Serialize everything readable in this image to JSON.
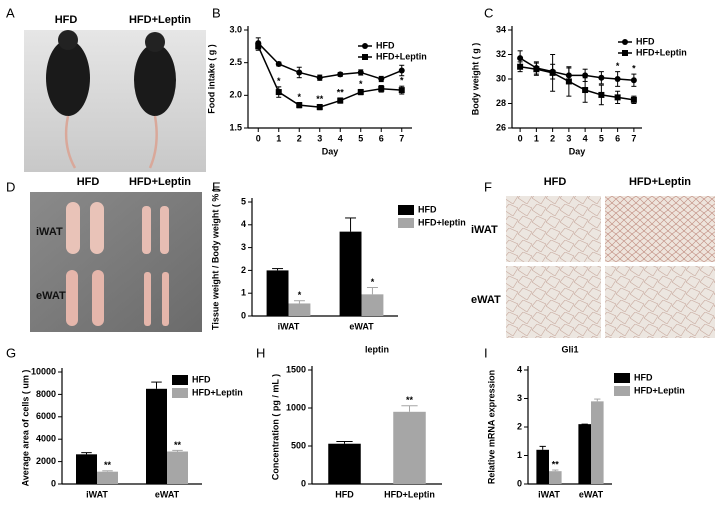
{
  "panel_letters": [
    "A",
    "B",
    "C",
    "D",
    "E",
    "F",
    "G",
    "H",
    "I"
  ],
  "photos": {
    "mice": {
      "labels": [
        "HFD",
        "HFD+Leptin"
      ]
    },
    "tissue": {
      "labels": [
        "HFD",
        "HFD+Leptin",
        "iWAT",
        "eWAT"
      ]
    },
    "histology": {
      "labels": [
        "HFD",
        "HFD+Leptin",
        "iWAT",
        "eWAT"
      ]
    }
  },
  "chart_data": [
    {
      "type": "line",
      "ylabel": "Food intake ( g )",
      "xlabel": "Day",
      "x": [
        0,
        1,
        2,
        3,
        4,
        5,
        6,
        7
      ],
      "xlim": [
        -0.5,
        7.5
      ],
      "xticks": [
        0,
        1,
        2,
        3,
        4,
        5,
        6,
        7
      ],
      "ylim": [
        1.5,
        3.0
      ],
      "yticks": [
        1.5,
        {
          "value": 2,
          "label": "2.0"
        },
        2.5,
        {
          "value": 3,
          "label": "3.0"
        }
      ],
      "series": [
        {
          "name": "HFD",
          "color": "#000000",
          "marker": "circle",
          "values": [
            2.8,
            2.48,
            2.35,
            2.27,
            2.32,
            2.35,
            2.25,
            2.38
          ],
          "errors": [
            0.08,
            0.03,
            0.08,
            0.04,
            0.03,
            0.04,
            0.04,
            0.08
          ],
          "significance": [
            null,
            null,
            null,
            null,
            null,
            null,
            null,
            null
          ]
        },
        {
          "name": "HFD+Leptin",
          "color": "#000000",
          "marker": "square",
          "values": [
            2.75,
            2.05,
            1.85,
            1.82,
            1.92,
            2.05,
            2.1,
            2.08
          ],
          "errors": [
            0.06,
            0.08,
            0.04,
            0.04,
            0.04,
            0.04,
            0.05,
            0.06
          ],
          "significance": [
            null,
            "*",
            "*",
            "**",
            "**",
            "*",
            "*",
            "*"
          ]
        }
      ]
    },
    {
      "type": "line",
      "ylabel": "Body weight ( g )",
      "xlabel": "Day",
      "x": [
        0,
        1,
        2,
        3,
        4,
        5,
        6,
        7
      ],
      "xlim": [
        -0.5,
        7.5
      ],
      "xticks": [
        0,
        1,
        2,
        3,
        4,
        5,
        6,
        7
      ],
      "ylim": [
        26,
        34
      ],
      "yticks": [
        26,
        28,
        30,
        32,
        34
      ],
      "series": [
        {
          "name": "HFD",
          "color": "#000000",
          "marker": "circle",
          "values": [
            31.7,
            30.9,
            30.6,
            30.3,
            30.3,
            30.1,
            30.0,
            29.9
          ],
          "errors": [
            0.6,
            0.5,
            0.6,
            0.6,
            0.5,
            0.5,
            0.6,
            0.5
          ],
          "significance": [
            null,
            null,
            null,
            null,
            null,
            null,
            "*",
            "*"
          ]
        },
        {
          "name": "HFD+Leptin",
          "color": "#000000",
          "marker": "square",
          "values": [
            31.0,
            30.8,
            30.5,
            29.8,
            29.1,
            28.7,
            28.5,
            28.3
          ],
          "errors": [
            0.4,
            0.5,
            1.5,
            1.2,
            1.0,
            0.8,
            0.5,
            0.3
          ],
          "significance": [
            null,
            null,
            null,
            null,
            null,
            null,
            null,
            null
          ]
        }
      ]
    },
    {
      "type": "bar",
      "ylabel": "Tissue weight / Body weight ( % )",
      "categories": [
        "iWAT",
        "eWAT"
      ],
      "ylim": [
        0,
        5
      ],
      "yticks": [
        0,
        1,
        2,
        3,
        4,
        5
      ],
      "series": [
        {
          "name": "HFD",
          "color": "#000000",
          "values": [
            2.0,
            3.7
          ],
          "errors": [
            0.08,
            0.6
          ],
          "significance": [
            null,
            null
          ]
        },
        {
          "name": "HFD+leptin",
          "color": "#a6a6a6",
          "values": [
            0.55,
            0.95
          ],
          "errors": [
            0.12,
            0.3
          ],
          "significance": [
            "*",
            "*"
          ]
        }
      ]
    },
    {
      "type": "bar",
      "ylabel": "Average area of cells ( um )",
      "categories": [
        "iWAT",
        "eWAT"
      ],
      "ylim": [
        0,
        10000
      ],
      "yticks": [
        0,
        2000,
        4000,
        6000,
        8000,
        10000
      ],
      "series": [
        {
          "name": "HFD",
          "color": "#000000",
          "values": [
            2650,
            8500
          ],
          "errors": [
            150,
            600
          ],
          "significance": [
            null,
            null
          ]
        },
        {
          "name": "HFD+Leptin",
          "color": "#a6a6a6",
          "values": [
            1100,
            2900
          ],
          "errors": [
            80,
            100
          ],
          "significance": [
            "**",
            "**"
          ]
        }
      ]
    },
    {
      "type": "bar",
      "title": "leptin",
      "ylabel": "Concentration ( pg / mL )",
      "categories": [
        "HFD",
        "HFD+Leptin"
      ],
      "ylim": [
        0,
        1500
      ],
      "yticks": [
        0,
        500,
        1000,
        1500
      ],
      "series": [
        {
          "colors": [
            "#000000",
            "#a6a6a6"
          ],
          "values": [
            530,
            950
          ],
          "errors": [
            30,
            80
          ],
          "significance": [
            null,
            "**"
          ]
        }
      ]
    },
    {
      "type": "bar",
      "title": "Gli1",
      "ylabel": "Relative mRNA expression",
      "categories": [
        "iWAT",
        "eWAT"
      ],
      "ylim": [
        0,
        4
      ],
      "yticks": [
        0,
        1,
        2,
        3,
        4
      ],
      "series": [
        {
          "name": "HFD",
          "color": "#000000",
          "values": [
            1.2,
            2.1
          ],
          "errors": [
            0.12,
            0
          ],
          "significance": [
            null,
            null
          ]
        },
        {
          "name": "HFD+Leptin",
          "color": "#a6a6a6",
          "values": [
            0.45,
            2.9
          ],
          "errors": [
            0.04,
            0.08
          ],
          "significance": [
            "**",
            null
          ]
        }
      ]
    }
  ]
}
